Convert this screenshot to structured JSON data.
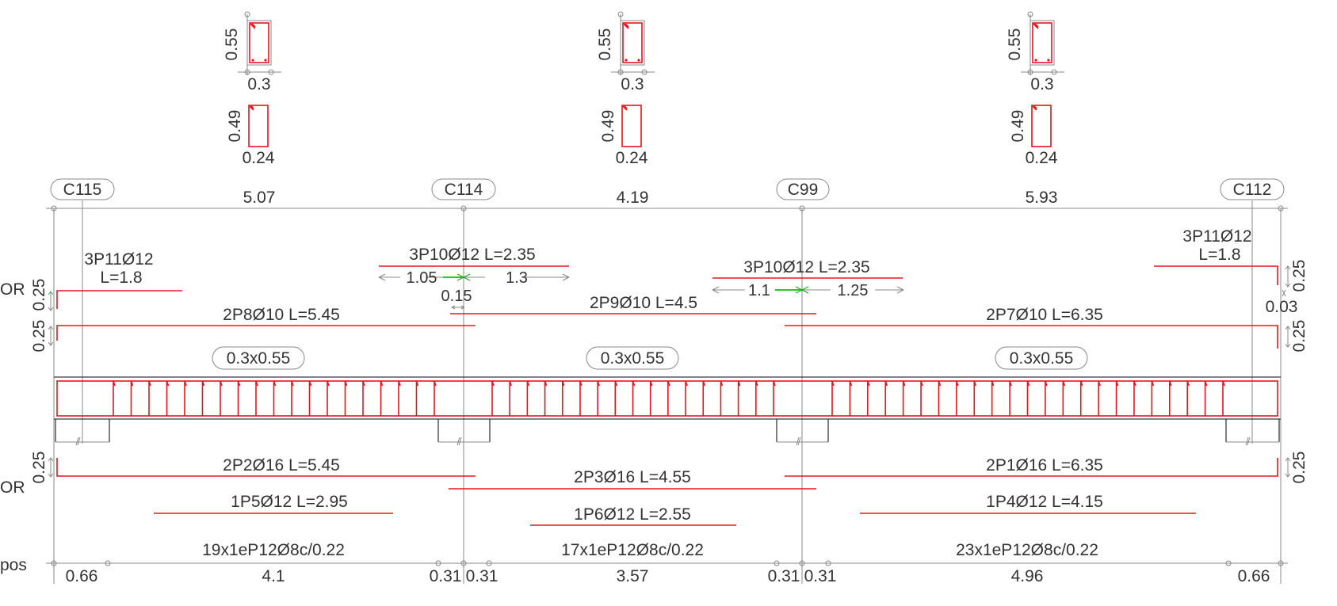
{
  "colors": {
    "rebar": "#e8141b",
    "line": "#3a3a3a",
    "text": "#333333",
    "green_mark": "#22cc22"
  },
  "sections": [
    {
      "h_top": "0.55",
      "w_top": "0.3",
      "h_bot": "0.49",
      "w_bot": "0.24"
    },
    {
      "h_top": "0.55",
      "w_top": "0.3",
      "h_bot": "0.49",
      "w_bot": "0.24"
    },
    {
      "h_top": "0.55",
      "w_top": "0.3",
      "h_bot": "0.49",
      "w_bot": "0.24"
    }
  ],
  "columns": [
    "C115",
    "C114",
    "C99",
    "C112"
  ],
  "spans": [
    "5.07",
    "4.19",
    "5.93"
  ],
  "beam_sizes": [
    "0.3x0.55",
    "0.3x0.55",
    "0.3x0.55"
  ],
  "top_bars": {
    "left_end": {
      "line1": "3P11Ø12",
      "line2": "L=1.8"
    },
    "right_end": {
      "line1": "3P11Ø12",
      "line2": "L=1.8"
    },
    "support_b": {
      "label": "3P10Ø12 L=2.35",
      "left": "1.05",
      "right": "1.3",
      "gap": "0.15"
    },
    "support_c": {
      "label": "3P10Ø12 L=2.35",
      "left": "1.1",
      "right": "1.25"
    },
    "span1": "2P8Ø10 L=5.45",
    "span2": "2P9Ø10 L=4.5",
    "span3": "2P7Ø10 L=6.35"
  },
  "bottom_bars": {
    "span1": "2P2Ø16 L=5.45",
    "span2": "2P3Ø16 L=4.55",
    "span3": "2P1Ø16 L=6.35",
    "extra1": "1P5Ø12 L=2.95",
    "extra2": "1P6Ø12 L=2.55",
    "extra3": "1P4Ø12 L=4.15"
  },
  "stirrups": [
    "19x1eP12Ø8c/0.22",
    "17x1eP12Ø8c/0.22",
    "23x1eP12Ø8c/0.22"
  ],
  "side_dims": {
    "left_top": "0.25",
    "left_mid": "0.25",
    "left_bot": "0.25",
    "right_top": "0.25",
    "right_mid": "0.03",
    "right_low": "0.25",
    "right_bot": "0.25"
  },
  "side_labels": {
    "top": "OR",
    "bottom": "OR",
    "stirrups": "pos"
  },
  "bottom_dims": [
    "0.66",
    "4.1",
    "0.31",
    "0.31",
    "3.57",
    "0.31",
    "0.31",
    "4.96",
    "0.66"
  ]
}
